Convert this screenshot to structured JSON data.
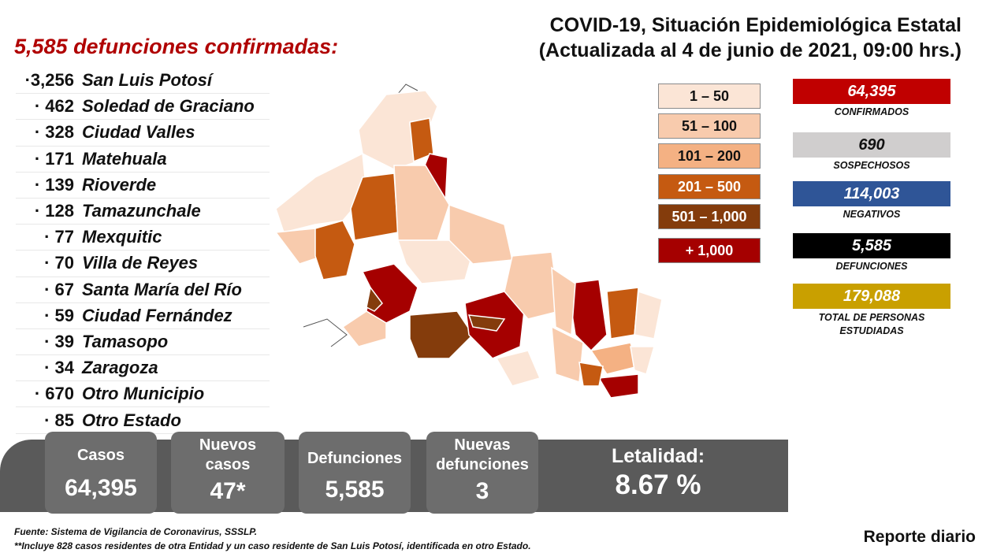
{
  "header": {
    "title_line1": "COVID-19, Situación Epidemiológica Estatal",
    "title_line2": "(Actualizada al 4 de junio de 2021, 09:00 hrs.)"
  },
  "deaths_heading": "5,585 defunciones confirmadas:",
  "municipalities": [
    {
      "count": "·3,256",
      "name": "San Luis Potosí"
    },
    {
      "count": "· 462",
      "name": "Soledad de Graciano"
    },
    {
      "count": "· 328",
      "name": "Ciudad Valles"
    },
    {
      "count": "· 171",
      "name": "Matehuala"
    },
    {
      "count": "· 139",
      "name": "Rioverde"
    },
    {
      "count": "· 128",
      "name": "Tamazunchale"
    },
    {
      "count": "· 77",
      "name": "Mexquitic"
    },
    {
      "count": "· 70",
      "name": "Villa de Reyes"
    },
    {
      "count": "· 67",
      "name": "Santa María del Río"
    },
    {
      "count": "· 59",
      "name": "Ciudad Fernández"
    },
    {
      "count": "· 39",
      "name": "Tamasopo"
    },
    {
      "count": "· 34",
      "name": "Zaragoza"
    },
    {
      "count": "· 670",
      "name": "Otro Municipio"
    },
    {
      "count": "· 85",
      "name": "Otro Estado"
    }
  ],
  "legend": [
    {
      "label": "1 – 50",
      "color": "#fbe5d6",
      "text_color": "#111111"
    },
    {
      "label": "51 – 100",
      "color": "#f8cbad",
      "text_color": "#111111"
    },
    {
      "label": "101 – 200",
      "color": "#f4b183",
      "text_color": "#111111"
    },
    {
      "label": "201 – 500",
      "color": "#c55a11",
      "text_color": "#ffffff"
    },
    {
      "label": "501 – 1,000",
      "color": "#843c0c",
      "text_color": "#ffffff"
    },
    {
      "label": "+ 1,000",
      "color": "#a50000",
      "text_color": "#ffffff"
    }
  ],
  "stats": [
    {
      "value": "64,395",
      "label": "CONFIRMADOS",
      "color": "#c00000",
      "text_color": "#ffffff"
    },
    {
      "value": "690",
      "label": "SOSPECHOSOS",
      "color": "#d0cece",
      "text_color": "#111111"
    },
    {
      "value": "114,003",
      "label": "NEGATIVOS",
      "color": "#2f5597",
      "text_color": "#ffffff"
    },
    {
      "value": "5,585",
      "label": "DEFUNCIONES",
      "color": "#000000",
      "text_color": "#ffffff"
    },
    {
      "value": "179,088",
      "label": "TOTAL DE PERSONAS ESTUDIADAS",
      "color": "#c9a000",
      "text_color": "#ffffff"
    }
  ],
  "summary": {
    "casos_label": "Casos",
    "casos_value": "64,395",
    "nuevos_casos_label": "Nuevos casos",
    "nuevos_casos_value": "47*",
    "defunciones_label": "Defunciones",
    "defunciones_value": "5,585",
    "nuevas_defunciones_label": "Nuevas defunciones",
    "nuevas_defunciones_value": "3",
    "letalidad_label": "Letalidad:",
    "letalidad_value": "8.67 %"
  },
  "footer": {
    "fuente": "Fuente: Sistema de Vigilancia de Coronavirus, SSSLP.",
    "nota": "**Incluye 828 casos residentes de otra Entidad y un caso residente de San Luis Potosí, identificada en otro Estado.",
    "reporte": "Reporte diario"
  }
}
